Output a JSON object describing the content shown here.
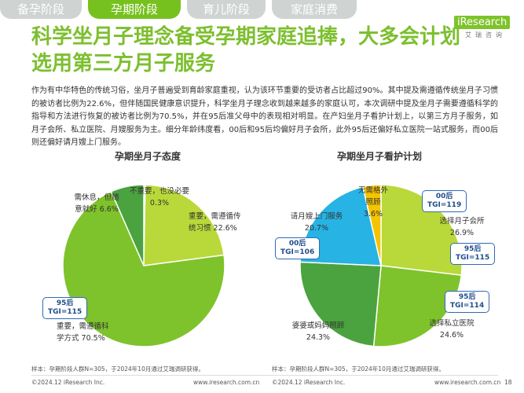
{
  "tabs": [
    "备孕阶段",
    "孕期阶段",
    "育儿阶段",
    "家庭消费"
  ],
  "active_tab": 1,
  "logo": {
    "main": "iResearch",
    "sub": "艾瑞咨询"
  },
  "title": "科学坐月子理念备受孕期家庭追捧，大多会计划选用第三方月子服务",
  "body": "作为有中华特色的传统习俗，坐月子普遍受到育龄家庭重视，认为该环节重要的受访者占比超过90%。其中提及需遵循传统坐月子习惯的被访者比例为22.6%，但伴随国民健康意识提升，科学坐月子理念收到越来越多的家庭认可，本次调研中提及坐月子需要遵循科学的指导和方法进行恢复的被访者比例为70.5%，并在95后准父母中的表现相对明显。在产妇坐月子看护计划上，以第三方月子服务，如月子会所、私立医院、月嫂服务为主。细分年龄纬度看，00后和95后均偏好月子会所，此外95后还偏好私立医院一站式服务，而00后则还偏好请月嫂上门服务。",
  "chart_data": [
    {
      "type": "pie",
      "title": "孕期坐月子态度",
      "labels": [
        "不重要，也没必要",
        "重要，需遵循传统习惯",
        "重要，需遵循科学方式",
        "需休息，但随意就好"
      ],
      "values": [
        0.3,
        22.6,
        70.5,
        6.6
      ],
      "value_labels": [
        "0.3%",
        "22.6%",
        "70.5%",
        "6.6%"
      ],
      "colors": [
        "#2fa36b",
        "#b9d93a",
        "#7ec32b",
        "#4aa33f"
      ],
      "callouts": [
        {
          "group": "95后",
          "metric": "TGI=115"
        }
      ]
    },
    {
      "type": "pie",
      "title": "孕期坐月子看护计划",
      "labels": [
        "选择月子会所",
        "选择私立医院",
        "婆婆或妈妈照顾",
        "请月嫂上门服务",
        "无需格外照顾"
      ],
      "values": [
        26.9,
        24.6,
        24.3,
        20.7,
        3.6
      ],
      "value_labels": [
        "26.9%",
        "24.6%",
        "24.3%",
        "20.7%",
        "3.6%"
      ],
      "colors": [
        "#b9d93a",
        "#7ec32b",
        "#4aa33f",
        "#27b3e3",
        "#f5c400"
      ],
      "callouts": [
        {
          "group": "00后",
          "metric": "TGI=119"
        },
        {
          "group": "95后",
          "metric": "TGI=115"
        },
        {
          "group": "95后",
          "metric": "TGI=114"
        },
        {
          "group": "00后",
          "metric": "TGI=106"
        }
      ]
    }
  ],
  "notes": [
    "样本：孕期阶段人群N=305，于2024年10月通过艾瑞调研获得。",
    "样本：孕期阶段人群N=305，于2024年10月通过艾瑞调研获得。"
  ],
  "footer": {
    "left1": "©2024.12 iResearch Inc.",
    "mid1": "www.iresearch.com.cn",
    "left2": "©2024.12 iResearch Inc.",
    "mid2": "www.iresearch.com.cn",
    "page": "18"
  }
}
